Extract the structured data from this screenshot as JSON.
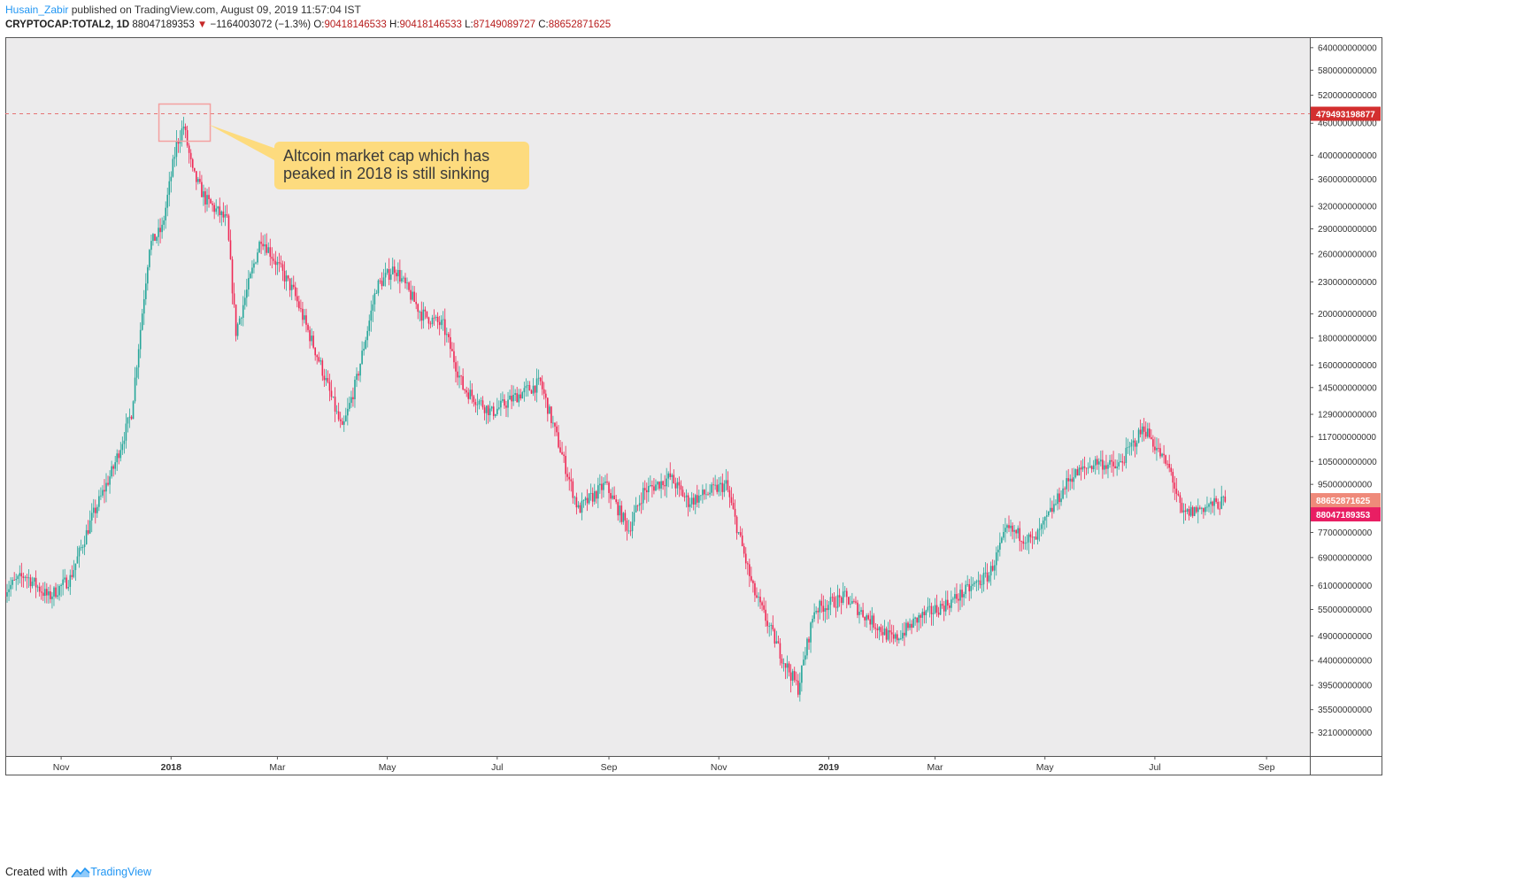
{
  "header": {
    "author": "Husain_Zabir",
    "published": "published on TradingView.com, August 09, 2019 11:57:04 IST"
  },
  "ohlc": {
    "symbol": "CRYPTOCAP:TOTAL2, 1D",
    "last": "88047189353",
    "arrow": "▼",
    "change": "−1164003072 (−1.3%)",
    "o_label": "O:",
    "o": "90418146533",
    "h_label": "H:",
    "h": "90418146533",
    "l_label": "L:",
    "l": "87149089727",
    "c_label": "C:",
    "c": "88652871625"
  },
  "footer": {
    "created_with": "Created with",
    "brand": "TradingView"
  },
  "colors": {
    "up": "#26a69a",
    "down": "#ef2855",
    "plot_bg": "#ecebec",
    "callout_bg": "#fddb7e",
    "peak_line": "#e57373",
    "peak_label_bg": "#d32f2f",
    "close_label_bg": "#ef8a7a",
    "last_label_bg": "#e91e63"
  },
  "chart_data": {
    "type": "candlestick",
    "symbol": "CRYPTOCAP:TOTAL2",
    "interval": "1D",
    "date_range": [
      "2017-10-01",
      "2019-09-25"
    ],
    "last_bar_date": "2019-08-09",
    "x_tick_labels": [
      {
        "date": "2017-11-01",
        "label": "Nov"
      },
      {
        "date": "2018-01-01",
        "label": "2018"
      },
      {
        "date": "2018-03-01",
        "label": "Mar"
      },
      {
        "date": "2018-05-01",
        "label": "May"
      },
      {
        "date": "2018-07-01",
        "label": "Jul"
      },
      {
        "date": "2018-09-01",
        "label": "Sep"
      },
      {
        "date": "2018-11-01",
        "label": "Nov"
      },
      {
        "date": "2019-01-01",
        "label": "2019"
      },
      {
        "date": "2019-03-01",
        "label": "Mar"
      },
      {
        "date": "2019-05-01",
        "label": "May"
      },
      {
        "date": "2019-07-01",
        "label": "Jul"
      },
      {
        "date": "2019-09-01",
        "label": "Sep"
      }
    ],
    "y_scale": "log",
    "y_range": [
      29000000000,
      670000000000
    ],
    "y_tick_values": [
      640000000000,
      580000000000,
      520000000000,
      460000000000,
      400000000000,
      360000000000,
      320000000000,
      290000000000,
      260000000000,
      230000000000,
      200000000000,
      180000000000,
      160000000000,
      145000000000,
      129000000000,
      117000000000,
      105000000000,
      95000000000,
      77000000000,
      69000000000,
      61000000000,
      55000000000,
      49000000000,
      44000000000,
      39500000000,
      35500000000,
      32100000000
    ],
    "y_tick_labels": [
      "640000000000",
      "580000000000",
      "520000000000",
      "460000000000",
      "400000000000",
      "360000000000",
      "320000000000",
      "290000000000",
      "260000000000",
      "230000000000",
      "200000000000",
      "180000000000",
      "160000000000",
      "145000000000",
      "129000000000",
      "117000000000",
      "105000000000",
      "95000000000",
      "77000000000",
      "69000000000",
      "61000000000",
      "55000000000",
      "49000000000",
      "44000000000",
      "39500000000",
      "35500000000",
      "32100000000"
    ],
    "close_path": [
      [
        "2017-10-01",
        60000000000
      ],
      [
        "2017-10-12",
        64000000000
      ],
      [
        "2017-10-25",
        58000000000
      ],
      [
        "2017-11-06",
        63000000000
      ],
      [
        "2017-11-18",
        82000000000
      ],
      [
        "2017-11-30",
        102000000000
      ],
      [
        "2017-12-10",
        130000000000
      ],
      [
        "2017-12-20",
        270000000000
      ],
      [
        "2017-12-27",
        290000000000
      ],
      [
        "2018-01-04",
        420000000000
      ],
      [
        "2018-01-08",
        455000000000
      ],
      [
        "2018-01-13",
        370000000000
      ],
      [
        "2018-01-20",
        330000000000
      ],
      [
        "2018-02-01",
        300000000000
      ],
      [
        "2018-02-06",
        185000000000
      ],
      [
        "2018-02-20",
        280000000000
      ],
      [
        "2018-03-10",
        220000000000
      ],
      [
        "2018-03-25",
        160000000000
      ],
      [
        "2018-04-06",
        120000000000
      ],
      [
        "2018-04-14",
        150000000000
      ],
      [
        "2018-04-25",
        225000000000
      ],
      [
        "2018-05-05",
        245000000000
      ],
      [
        "2018-05-20",
        200000000000
      ],
      [
        "2018-06-01",
        190000000000
      ],
      [
        "2018-06-12",
        145000000000
      ],
      [
        "2018-06-28",
        130000000000
      ],
      [
        "2018-07-12",
        140000000000
      ],
      [
        "2018-07-25",
        148000000000
      ],
      [
        "2018-08-15",
        85000000000
      ],
      [
        "2018-08-30",
        95000000000
      ],
      [
        "2018-09-12",
        78000000000
      ],
      [
        "2018-09-20",
        92000000000
      ],
      [
        "2018-10-05",
        98000000000
      ],
      [
        "2018-10-15",
        88000000000
      ],
      [
        "2018-11-05",
        95000000000
      ],
      [
        "2018-11-20",
        60000000000
      ],
      [
        "2018-12-07",
        44000000000
      ],
      [
        "2018-12-15",
        39000000000
      ],
      [
        "2018-12-24",
        55000000000
      ],
      [
        "2019-01-10",
        58000000000
      ],
      [
        "2019-02-06",
        48000000000
      ],
      [
        "2019-02-20",
        53000000000
      ],
      [
        "2019-03-10",
        57000000000
      ],
      [
        "2019-03-31",
        64000000000
      ],
      [
        "2019-04-10",
        78000000000
      ],
      [
        "2019-04-25",
        74000000000
      ],
      [
        "2019-05-15",
        98000000000
      ],
      [
        "2019-05-30",
        105000000000
      ],
      [
        "2019-06-10",
        102000000000
      ],
      [
        "2019-06-25",
        122000000000
      ],
      [
        "2019-07-10",
        100000000000
      ],
      [
        "2019-07-16",
        83000000000
      ],
      [
        "2019-07-28",
        86000000000
      ],
      [
        "2019-08-09",
        88047189353
      ]
    ],
    "peak_line": {
      "value": 479493198877,
      "label": "479493198877"
    },
    "close_marker": {
      "value": 88652871625,
      "label": "88652871625"
    },
    "last_marker": {
      "value": 88047189353,
      "label": "88047189353"
    },
    "annotation": {
      "lines": [
        "Altcoin market cap which has",
        "peaked in 2018 is still sinking"
      ],
      "target_date": "2018-01-08"
    }
  }
}
